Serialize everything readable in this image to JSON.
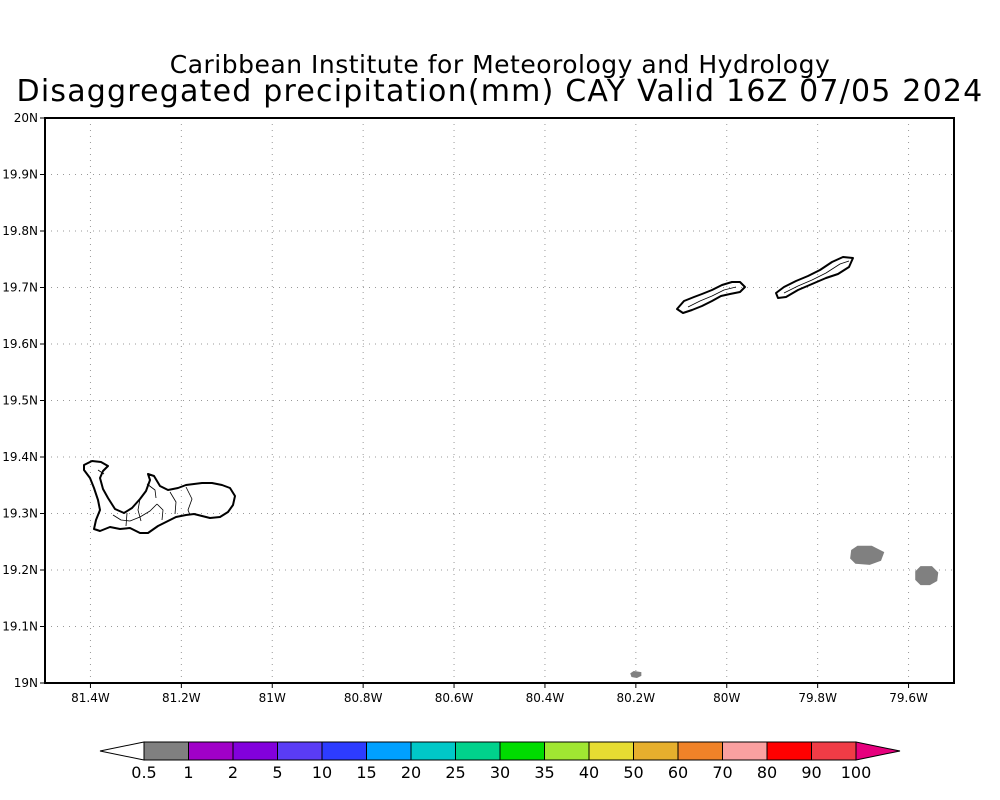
{
  "header": {
    "title_line1": "Caribbean Institute for Meteorology and Hydrology",
    "title_line2": "Disaggregated precipitation(mm) CAY Valid 16Z 07/05 2024"
  },
  "map": {
    "region": "Cayman Islands",
    "lon_range": [
      -81.5,
      -79.5
    ],
    "lat_range": [
      19.0,
      20.0
    ],
    "grid": "dotted",
    "lon_ticks": [
      {
        "value": -81.4,
        "label": "81.4W"
      },
      {
        "value": -81.2,
        "label": "81.2W"
      },
      {
        "value": -81.0,
        "label": "81W"
      },
      {
        "value": -80.8,
        "label": "80.8W"
      },
      {
        "value": -80.6,
        "label": "80.6W"
      },
      {
        "value": -80.4,
        "label": "80.4W"
      },
      {
        "value": -80.2,
        "label": "80.2W"
      },
      {
        "value": -80.0,
        "label": "80W"
      },
      {
        "value": -79.8,
        "label": "79.8W"
      },
      {
        "value": -79.6,
        "label": "79.6W"
      }
    ],
    "lat_ticks": [
      {
        "value": 19.0,
        "label": "19N"
      },
      {
        "value": 19.1,
        "label": "19.1N"
      },
      {
        "value": 19.2,
        "label": "19.2N"
      },
      {
        "value": 19.3,
        "label": "19.3N"
      },
      {
        "value": 19.4,
        "label": "19.4N"
      },
      {
        "value": 19.5,
        "label": "19.5N"
      },
      {
        "value": 19.6,
        "label": "19.6N"
      },
      {
        "value": 19.7,
        "label": "19.7N"
      },
      {
        "value": 19.8,
        "label": "19.8N"
      },
      {
        "value": 19.9,
        "label": "19.9N"
      },
      {
        "value": 20.0,
        "label": "20N"
      }
    ],
    "precip_cells": [
      {
        "lon": -79.69,
        "lat": 19.226,
        "value_mm": "0.5-1",
        "color": "#808080"
      },
      {
        "lon": -79.56,
        "lat": 19.19,
        "value_mm": "0.5-1",
        "color": "#808080"
      },
      {
        "lon": -80.2,
        "lat": 19.015,
        "value_mm": "0.5-1",
        "color": "#808080"
      }
    ]
  },
  "legend": {
    "labels": [
      "0.5",
      "1",
      "2",
      "5",
      "10",
      "15",
      "20",
      "25",
      "30",
      "35",
      "40",
      "50",
      "60",
      "70",
      "80",
      "90",
      "100"
    ],
    "colors": [
      "#808080",
      "#a000c8",
      "#8200dc",
      "#5a3cf5",
      "#2d3cff",
      "#00a0ff",
      "#00c8c8",
      "#00d28c",
      "#00dc00",
      "#a0e632",
      "#e6dc32",
      "#e6af2d",
      "#f08228",
      "#faa0a0",
      "#ff0000",
      "#f03c46"
    ],
    "under_color": "#ffffff",
    "over_color": "#e6007d"
  }
}
